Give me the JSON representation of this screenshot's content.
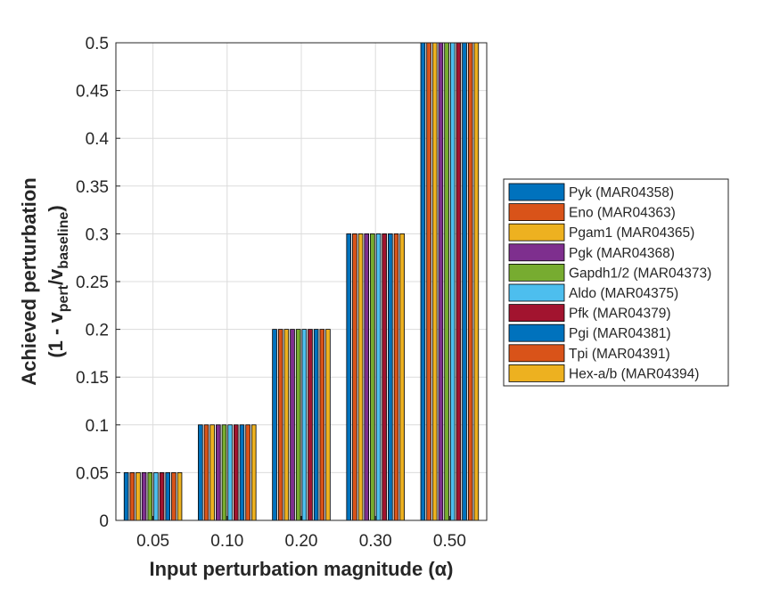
{
  "chart_data": {
    "type": "bar",
    "title": "",
    "xlabel": "Input perturbation magnitude (α)",
    "ylabel": {
      "line1": "Achieved perturbation",
      "line2_prefix": "(1 - v",
      "line2_sub1": "pert",
      "line2_mid": "/v",
      "line2_sub2": "baseline",
      "line2_suffix": ")"
    },
    "categories": [
      "0.05",
      "0.10",
      "0.20",
      "0.30",
      "0.50"
    ],
    "ylim": [
      0,
      0.5
    ],
    "yticks": [
      "0",
      "0.05",
      "0.1",
      "0.15",
      "0.2",
      "0.25",
      "0.3",
      "0.35",
      "0.4",
      "0.45",
      "0.5"
    ],
    "grid": true,
    "legend_position": "right",
    "series": [
      {
        "name": "Pyk (MAR04358)",
        "color": "#0072BD",
        "values": [
          0.05,
          0.1,
          0.2,
          0.3,
          0.5
        ]
      },
      {
        "name": "Eno (MAR04363)",
        "color": "#D95319",
        "values": [
          0.05,
          0.1,
          0.2,
          0.3,
          0.5
        ]
      },
      {
        "name": "Pgam1 (MAR04365)",
        "color": "#EDB120",
        "values": [
          0.05,
          0.1,
          0.2,
          0.3,
          0.5
        ]
      },
      {
        "name": "Pgk (MAR04368)",
        "color": "#7E2F8E",
        "values": [
          0.05,
          0.1,
          0.2,
          0.3,
          0.5
        ]
      },
      {
        "name": "Gapdh1/2 (MAR04373)",
        "color": "#77AC30",
        "values": [
          0.05,
          0.1,
          0.2,
          0.3,
          0.5
        ]
      },
      {
        "name": "Aldo (MAR04375)",
        "color": "#4DBEEE",
        "values": [
          0.05,
          0.1,
          0.2,
          0.3,
          0.5
        ]
      },
      {
        "name": "Pfk (MAR04379)",
        "color": "#A2142F",
        "values": [
          0.05,
          0.1,
          0.2,
          0.3,
          0.5
        ]
      },
      {
        "name": "Pgi (MAR04381)",
        "color": "#0072BD",
        "values": [
          0.05,
          0.1,
          0.2,
          0.3,
          0.5
        ]
      },
      {
        "name": "Tpi (MAR04391)",
        "color": "#D95319",
        "values": [
          0.05,
          0.1,
          0.2,
          0.3,
          0.5
        ]
      },
      {
        "name": "Hex-a/b (MAR04394)",
        "color": "#EDB120",
        "values": [
          0.05,
          0.1,
          0.2,
          0.3,
          0.5
        ]
      }
    ]
  }
}
